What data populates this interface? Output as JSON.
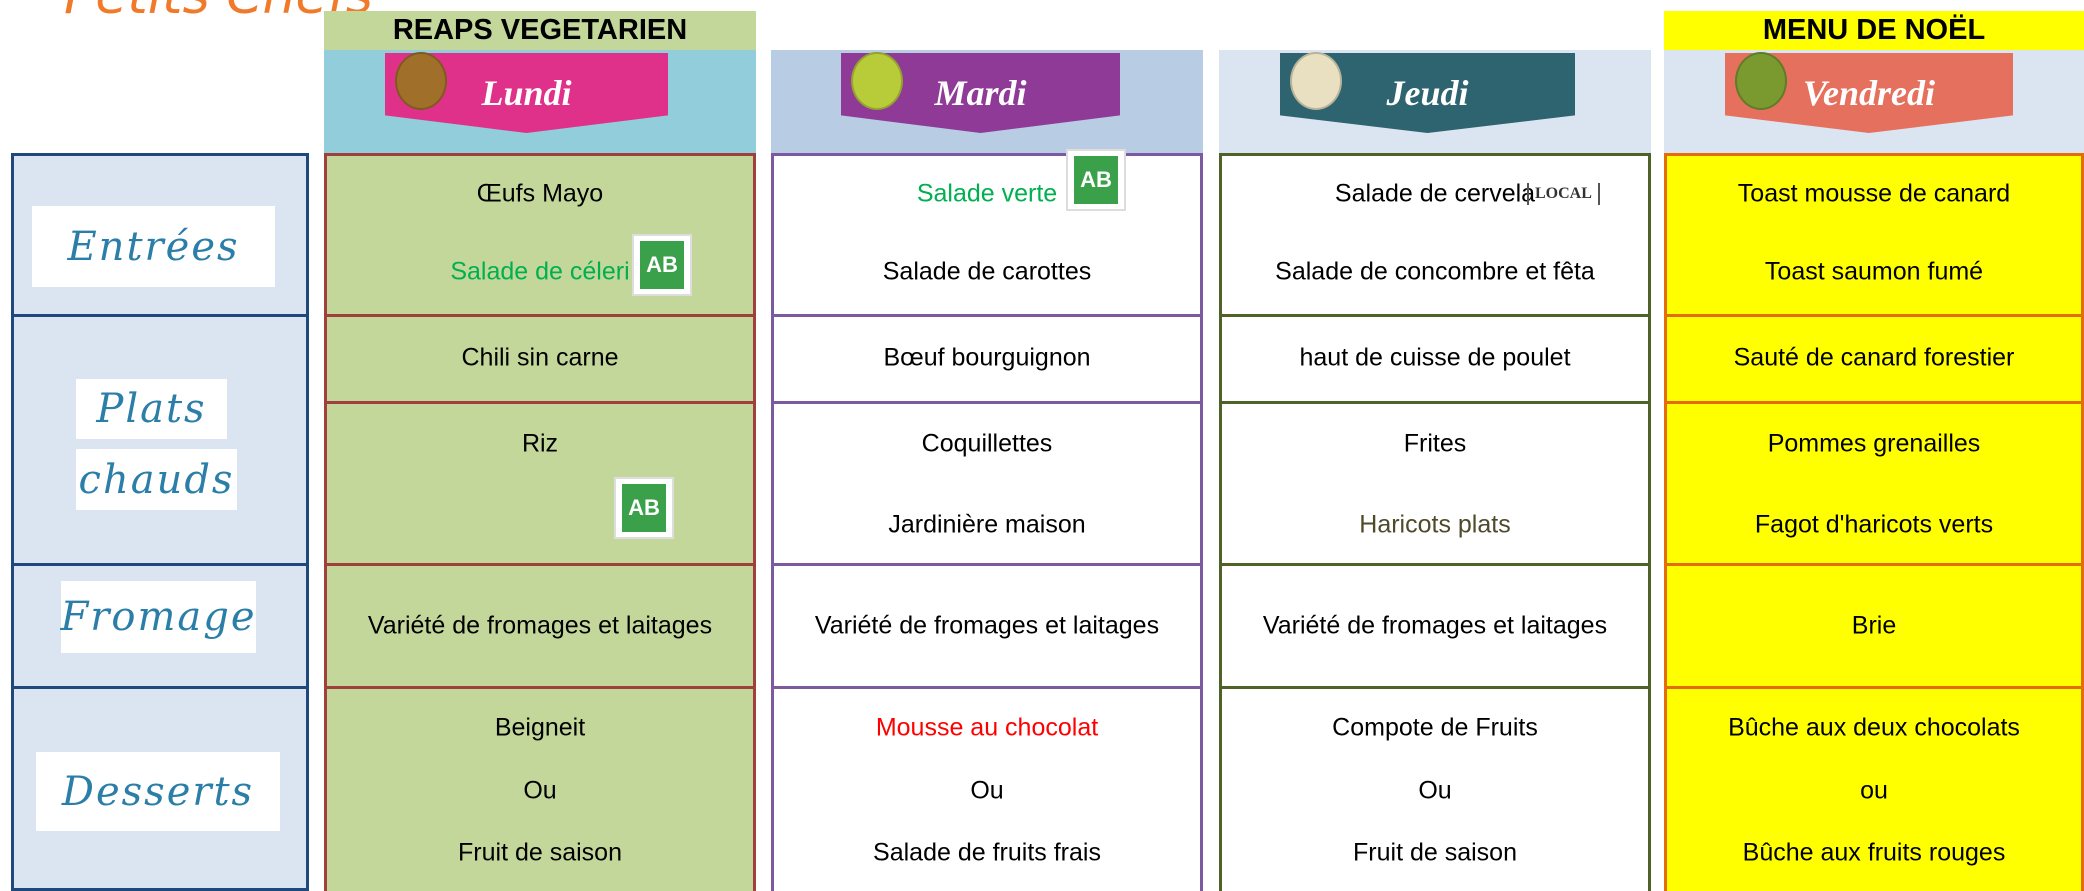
{
  "brand": "Petits Chefs",
  "sections": {
    "entrees": "Entrées",
    "plats": [
      "Plats",
      "chauds"
    ],
    "fromage": "Fromage",
    "desserts": "Desserts"
  },
  "logos": {
    "ab": "AB",
    "local": "LOCAL"
  },
  "days": [
    {
      "banner": "REAPS VEGETARIEN",
      "name": "Lundi",
      "entrees": [
        "Œufs Mayo",
        "Salade de céleri"
      ],
      "plat": "Chili sin carne",
      "accompagnements": [
        "Riz"
      ],
      "fromage": "Variété de fromages et laitages",
      "desserts": [
        "Beigneit",
        "Ou",
        "Fruit de saison"
      ]
    },
    {
      "name": "Mardi",
      "entrees": [
        "Salade verte",
        "Salade de carottes"
      ],
      "plat": "Bœuf bourguignon",
      "accompagnements": [
        "Coquillettes",
        "Jardinière maison"
      ],
      "fromage": "Variété de fromages et laitages",
      "desserts": [
        "Mousse au chocolat",
        "Ou",
        "Salade de fruits frais"
      ]
    },
    {
      "name": "Jeudi",
      "entrees": [
        "Salade de cervela",
        "Salade de concombre et fêta"
      ],
      "plat": "haut de cuisse de poulet",
      "accompagnements": [
        "Frites",
        "Haricots plats"
      ],
      "fromage": "Variété de fromages et laitages",
      "desserts": [
        "Compote de Fruits",
        "Ou",
        "Fruit de saison"
      ]
    },
    {
      "banner": "MENU DE NOËL",
      "name": "Vendredi",
      "entrees": [
        "Toast mousse de canard",
        "Toast saumon fumé"
      ],
      "plat": "Sauté de canard forestier",
      "accompagnements": [
        "Pommes grenailles",
        "Fagot d'haricots verts"
      ],
      "fromage": "Brie",
      "desserts": [
        "Bûche aux deux chocolats",
        "ou",
        "Bûche aux fruits rouges"
      ]
    }
  ]
}
